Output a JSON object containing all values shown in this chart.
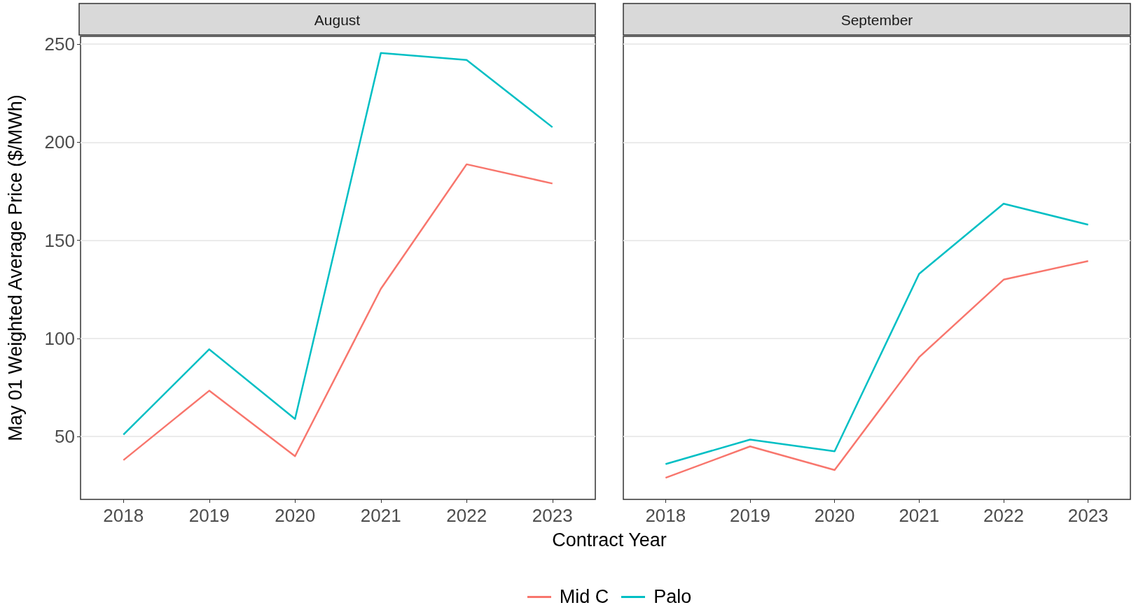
{
  "chart_data": [
    {
      "type": "line",
      "title": "August",
      "xlabel": "Contract Year",
      "ylabel": "May 01 Weighted Average Price ($/MWh)",
      "categories": [
        "2018",
        "2019",
        "2020",
        "2021",
        "2022",
        "2023"
      ],
      "ylim": [
        18,
        254
      ],
      "yticks": [
        50,
        100,
        150,
        200,
        250
      ],
      "grid": "y",
      "legend": "bottom",
      "marker": "none",
      "series": [
        {
          "name": "Mid C",
          "color": "#f8766d",
          "values": [
            38,
            73.4,
            40,
            125.3,
            188.8,
            179
          ]
        },
        {
          "name": "Palo",
          "color": "#00bfc4",
          "values": [
            51,
            94.5,
            59,
            245.5,
            242,
            207.7
          ]
        }
      ]
    },
    {
      "type": "line",
      "title": "September",
      "categories": [
        "2018",
        "2019",
        "2020",
        "2021",
        "2022",
        "2023"
      ],
      "ylim": [
        18,
        254
      ],
      "yticks": [
        50,
        100,
        150,
        200,
        250
      ],
      "grid": "y",
      "tick_labels": "x",
      "marker": "none",
      "series": [
        {
          "color": "#f8766d",
          "values": [
            29,
            45,
            33,
            90.5,
            130,
            139.5
          ]
        },
        {
          "color": "#00bfc4",
          "values": [
            36,
            48.5,
            42.5,
            133,
            168.7,
            158
          ]
        }
      ]
    }
  ]
}
